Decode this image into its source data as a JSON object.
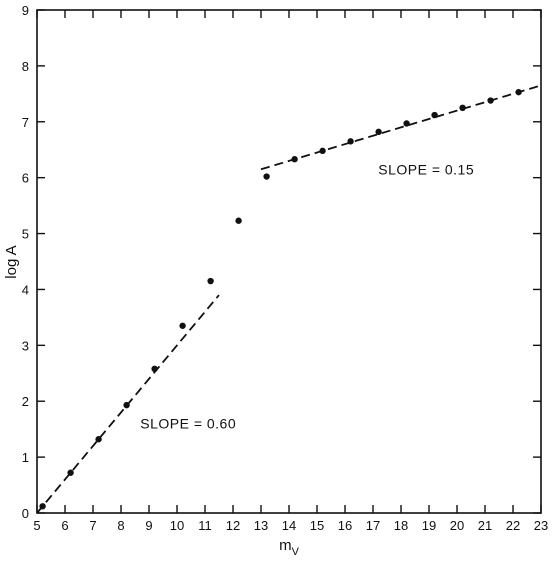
{
  "chart_data": {
    "type": "scatter",
    "title": "",
    "xlabel": "m",
    "xlabel_sub": "V",
    "ylabel": "log A",
    "xlim": [
      5,
      23
    ],
    "ylim": [
      0,
      9
    ],
    "x_ticks": [
      5,
      6,
      7,
      8,
      9,
      10,
      11,
      12,
      13,
      14,
      15,
      16,
      17,
      18,
      19,
      20,
      21,
      22,
      23
    ],
    "y_ticks": [
      0,
      1,
      2,
      3,
      4,
      5,
      6,
      7,
      8,
      9
    ],
    "grid": false,
    "series": [
      {
        "x": [
          5.2,
          6.2,
          7.2,
          8.2,
          9.2,
          10.2,
          11.2,
          12.2,
          13.2,
          14.2,
          15.2,
          16.2,
          17.2,
          18.2,
          19.2,
          20.2,
          21.2,
          22.2
        ],
        "y": [
          0.12,
          0.72,
          1.32,
          1.93,
          2.58,
          3.35,
          4.15,
          5.23,
          6.02,
          6.33,
          6.48,
          6.65,
          6.82,
          6.97,
          7.12,
          7.25,
          7.38,
          7.53
        ]
      }
    ],
    "fit_lines": [
      {
        "label": "SLOPE = 0.60",
        "x": [
          5.0,
          11.5
        ],
        "y": [
          0.0,
          3.9
        ]
      },
      {
        "label": "SLOPE = 0.15",
        "x": [
          13.0,
          23.0
        ],
        "y": [
          6.15,
          7.65
        ]
      }
    ],
    "annotations": [
      {
        "text": "SLOPE = 0.60",
        "x": 10.4,
        "y": 1.6
      },
      {
        "text": "SLOPE = 0.15",
        "x": 18.9,
        "y": 6.15
      }
    ]
  }
}
